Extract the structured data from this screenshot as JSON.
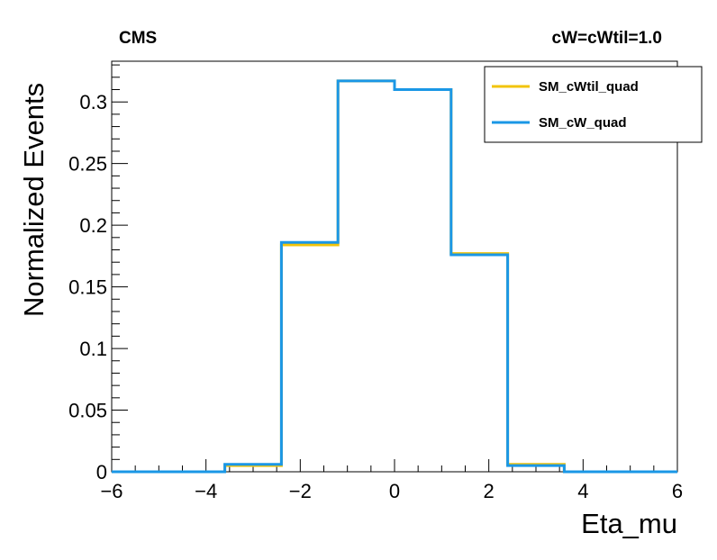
{
  "header": {
    "experiment": "CMS",
    "parameter": "cW=cWtil=1.0"
  },
  "chart_data": {
    "type": "line",
    "step": true,
    "xlabel": "Eta_mu",
    "ylabel": "Normalized Events",
    "xlim": [
      -6,
      6
    ],
    "ylim": [
      0,
      0.333
    ],
    "x_ticks": [
      "−6",
      "−4",
      "−2",
      "0",
      "2",
      "4",
      "6"
    ],
    "y_ticks": [
      "0",
      "0.05",
      "0.1",
      "0.15",
      "0.2",
      "0.25",
      "0.3"
    ],
    "bin_edges": [
      -6,
      -4.8,
      -3.6,
      -2.4,
      -1.2,
      0,
      1.2,
      2.4,
      3.6,
      4.8,
      6
    ],
    "series": [
      {
        "name": "SM_cWtil_quad",
        "color": "#f2c40a",
        "values": [
          0,
          0,
          0.005,
          0.184,
          0.317,
          0.31,
          0.177,
          0.006,
          0,
          0
        ]
      },
      {
        "name": "SM_cW_quad",
        "color": "#1a97e6",
        "values": [
          0,
          0,
          0.006,
          0.186,
          0.317,
          0.31,
          0.176,
          0.005,
          0,
          0
        ]
      }
    ],
    "legend_position": "top-right",
    "grid": false
  }
}
